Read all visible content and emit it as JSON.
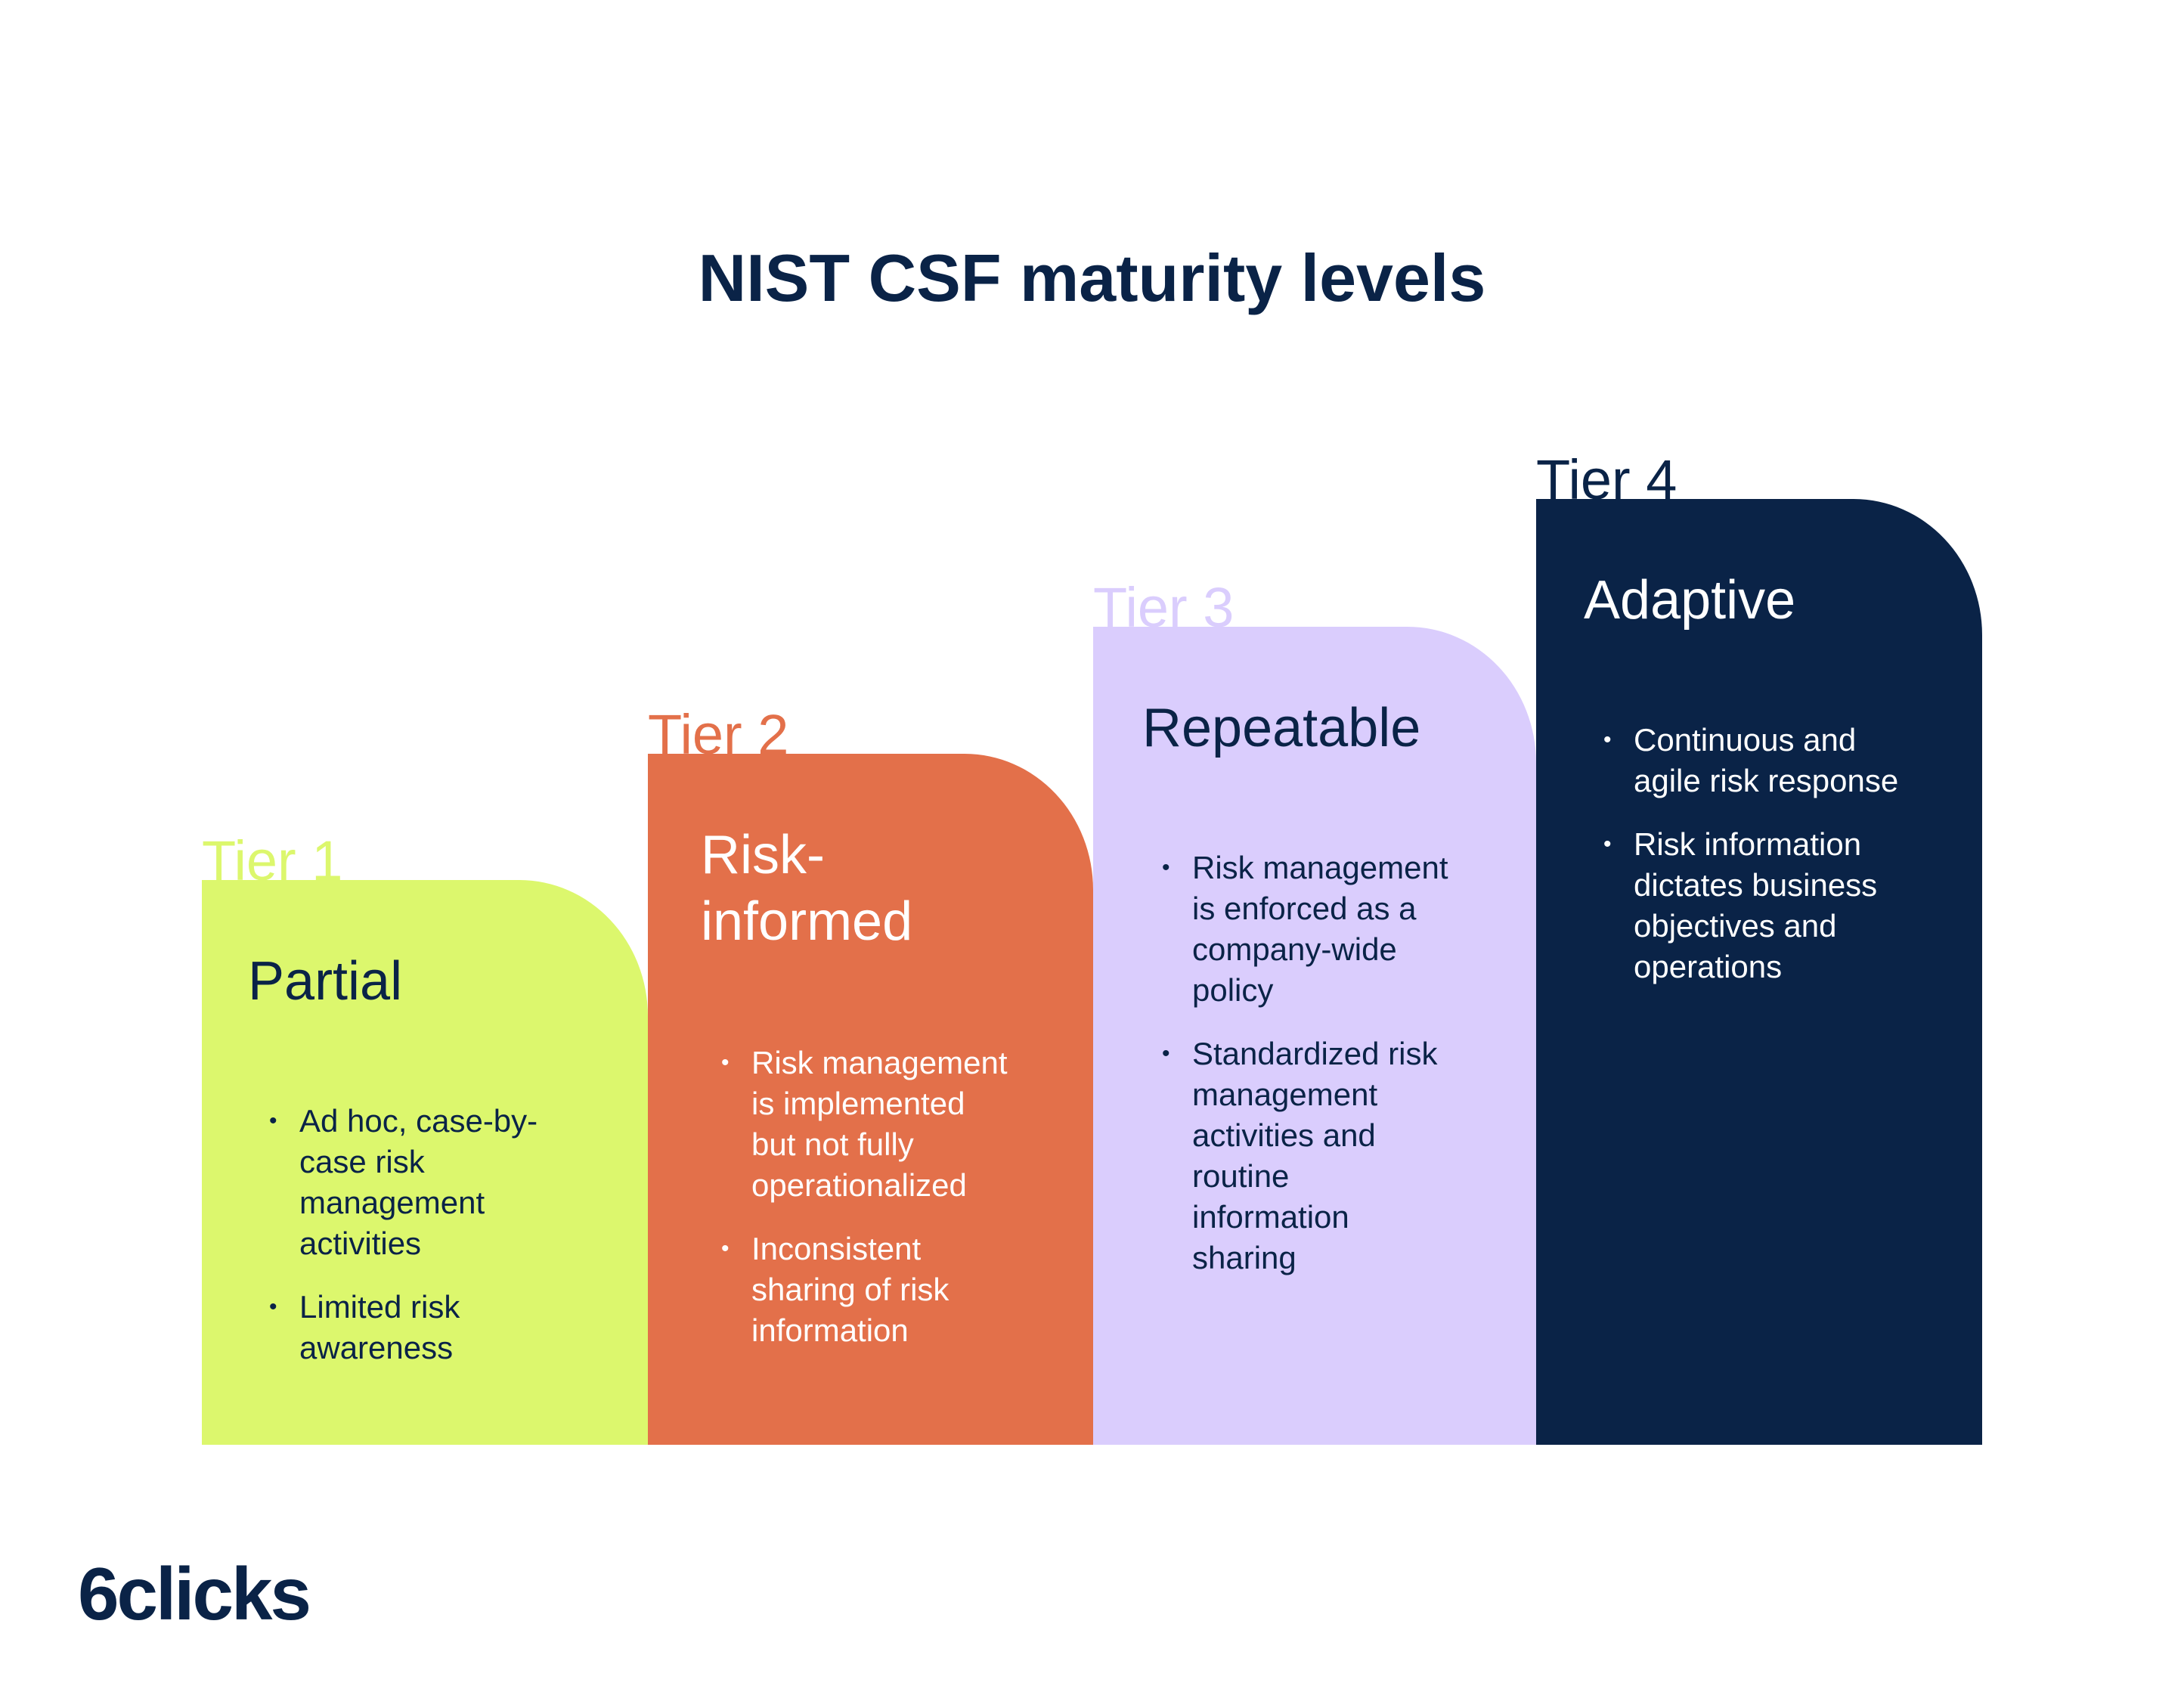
{
  "title": "NIST CSF maturity levels",
  "colors": {
    "navy": "#0a2347",
    "lime": "#dcf76d",
    "orange": "#e3704a",
    "lavender": "#dacdfd"
  },
  "tiers": [
    {
      "label": "Tier 1",
      "name": "Partial",
      "bullets": [
        "Ad hoc, case-by-\ncase risk\nmanagement\nactivities",
        "Limited risk\nawareness"
      ]
    },
    {
      "label": "Tier 2",
      "name": "Risk-\ninformed",
      "bullets": [
        "Risk management\nis implemented\nbut not fully\noperationalized",
        "Inconsistent\nsharing of risk\ninformation"
      ]
    },
    {
      "label": "Tier 3",
      "name": "Repeatable",
      "bullets": [
        "Risk management\nis enforced as a\ncompany-wide\npolicy",
        "Standardized risk\nmanagement\nactivities and\nroutine\ninformation\nsharing"
      ]
    },
    {
      "label": "Tier 4",
      "name": "Adaptive",
      "bullets": [
        "Continuous and\nagile risk response",
        "Risk information\ndictates business\nobjectives and\noperations"
      ]
    }
  ],
  "bullet_symbol": "•",
  "logo": "6clicks"
}
